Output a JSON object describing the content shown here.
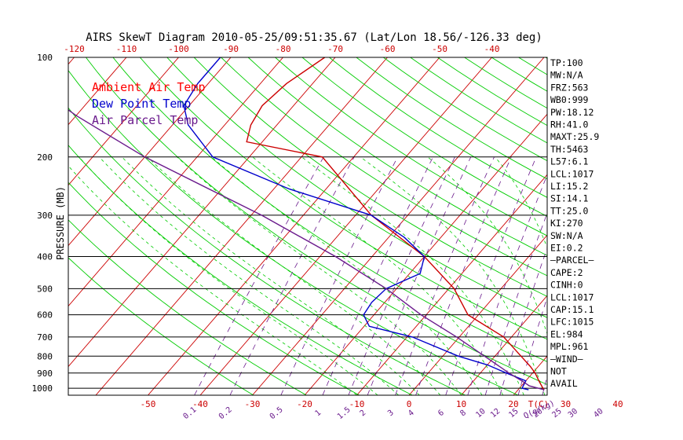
{
  "chart_data": {
    "type": "line",
    "title": "AIRS SkewT Diagram 2010-05-25/09:51:35.67 (Lat/Lon 18.56/-126.33 deg)",
    "ylabel": "PRESSURE (MB)",
    "y_scale": "log",
    "ylim": [
      1050,
      100
    ],
    "xlim_bottom": [
      -50,
      40
    ],
    "pressure_ticks": [
      "100",
      "200",
      "300",
      "400",
      "500",
      "600",
      "700",
      "800",
      "900",
      "1000"
    ],
    "pressure_values": [
      100,
      200,
      300,
      400,
      500,
      600,
      700,
      800,
      900,
      1000
    ],
    "bottom_ticks": [
      "-50",
      "-40",
      "-30",
      "-20",
      "-10",
      "0",
      "10",
      "20",
      "30",
      "40"
    ],
    "bottom_values": [
      -50,
      -40,
      -30,
      -20,
      -10,
      0,
      10,
      20,
      30,
      40
    ],
    "bottom_unit": "T(C)",
    "top_ticks": [
      "-120",
      "-110",
      "-100",
      "-90",
      "-80",
      "-70",
      "-60",
      "-50",
      "-40"
    ],
    "top_values": [
      -120,
      -110,
      -100,
      -90,
      -80,
      -70,
      -60,
      -50,
      -40
    ],
    "mixing_ratio_labels": [
      "0.1",
      "0.2",
      "0.5",
      "1",
      "1.5",
      "2",
      "3",
      "4",
      "6",
      "8",
      "10",
      "12",
      "15",
      "20",
      "25",
      "30",
      "40"
    ],
    "mixing_ratio_values": [
      0.1,
      0.2,
      0.5,
      1,
      1.5,
      2,
      3,
      4,
      6,
      8,
      10,
      12,
      15,
      20,
      25,
      30,
      40
    ],
    "mixing_ratio_unit": "Q(g/kg)",
    "legend": [
      {
        "label": "Ambient Air Temp",
        "color": "#ff0000"
      },
      {
        "label": "Dew Point Temp",
        "color": "#0000cc"
      },
      {
        "label": "Air Parcel Temp",
        "color": "#6a1a8c"
      }
    ],
    "series": [
      {
        "name": "Ambient Air Temp",
        "color": "#cc0000",
        "points": [
          [
            1011,
            25.0
          ],
          [
            1000,
            24.5
          ],
          [
            950,
            22.5
          ],
          [
            900,
            20.5
          ],
          [
            860,
            18.5
          ],
          [
            800,
            15.0
          ],
          [
            700,
            8.5
          ],
          [
            600,
            -2.0
          ],
          [
            500,
            -9.0
          ],
          [
            400,
            -20.0
          ],
          [
            300,
            -37.0
          ],
          [
            200,
            -56.0
          ],
          [
            180,
            -73.0
          ],
          [
            160,
            -75.0
          ],
          [
            140,
            -76.0
          ],
          [
            120,
            -75.0
          ],
          [
            100,
            -72.0
          ]
        ]
      },
      {
        "name": "Dew Point Temp",
        "color": "#0000cc",
        "points": [
          [
            1011,
            22.0
          ],
          [
            1000,
            20.5
          ],
          [
            950,
            20.0
          ],
          [
            900,
            15.0
          ],
          [
            850,
            10.0
          ],
          [
            800,
            3.0
          ],
          [
            700,
            -9.0
          ],
          [
            650,
            -19.0
          ],
          [
            600,
            -22.0
          ],
          [
            550,
            -22.5
          ],
          [
            500,
            -22.0
          ],
          [
            450,
            -18.0
          ],
          [
            400,
            -20.0
          ],
          [
            350,
            -27.0
          ],
          [
            300,
            -37.0
          ],
          [
            250,
            -57.0
          ],
          [
            200,
            -77.0
          ],
          [
            160,
            -87.0
          ],
          [
            140,
            -91.0
          ],
          [
            120,
            -92.0
          ],
          [
            100,
            -92.0
          ]
        ]
      },
      {
        "name": "Air Parcel Temp",
        "color": "#6a1a8c",
        "points": [
          [
            1011,
            25.0
          ],
          [
            984,
            21.5
          ],
          [
            961,
            20.0
          ],
          [
            900,
            15.5
          ],
          [
            800,
            8.0
          ],
          [
            700,
            -0.5
          ],
          [
            600,
            -11.0
          ],
          [
            500,
            -22.0
          ],
          [
            400,
            -37.0
          ],
          [
            300,
            -58.0
          ],
          [
            200,
            -90.0
          ],
          [
            150,
            -110.0
          ],
          [
            100,
            -135.0
          ]
        ]
      }
    ],
    "side_panel": [
      "TP:100",
      "MW:N/A",
      "FRZ:563",
      "WB0:999",
      "PW:18.12",
      "RH:41.0",
      "MAXT:25.9",
      "TH:5463",
      "L57:6.1",
      "LCL:1017",
      "LI:15.2",
      "SI:14.1",
      "TT:25.0",
      "KI:270",
      "SW:N/A",
      "EI:0.2",
      "—PARCEL—",
      "CAPE:2",
      "CINH:0",
      "LCL:1017",
      "CAP:15.1",
      "LFC:1015",
      "EL:984",
      "MPL:961",
      "—WIND—",
      "NOT",
      "AVAIL"
    ],
    "colors": {
      "frame": "#000000",
      "isotherm": "#cc0000",
      "dry_adiabat": "#00cc00",
      "moist_adiabat": "#00cc00",
      "mixing_ratio": "#6a1a8c",
      "top_labels": "#cc0000",
      "bottom_labels": "#cc0000",
      "mr_labels": "#6a1a8c",
      "ambient": "#cc0000",
      "dewpoint": "#0000cc",
      "parcel": "#6a1a8c"
    }
  }
}
